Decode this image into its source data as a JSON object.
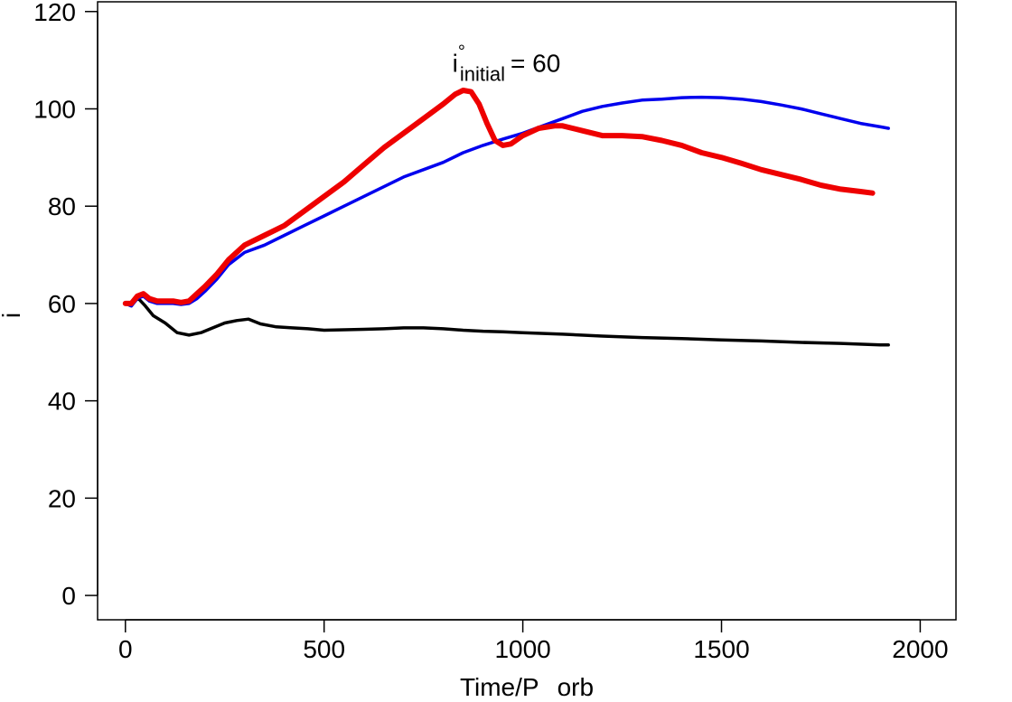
{
  "chart_data": {
    "type": "line",
    "title": "",
    "xlabel": {
      "main": "Time/P",
      "sub": "orb"
    },
    "ylabel": {
      "main": "i",
      "sup": "°"
    },
    "xlim": [
      -70,
      2090
    ],
    "ylim": [
      -5,
      122
    ],
    "xticks": [
      0,
      500,
      1000,
      1500,
      2000
    ],
    "yticks": [
      0,
      20,
      40,
      60,
      80,
      100,
      120
    ],
    "grid": false,
    "legend": "none",
    "annotation": {
      "symbol": "i",
      "sup": "°",
      "sub": "initial",
      "equals": "= 60",
      "x": 850,
      "y": 108
    },
    "series": [
      {
        "color": "#0000ee",
        "width": 3.5,
        "x": [
          0,
          15,
          30,
          45,
          60,
          80,
          100,
          120,
          140,
          160,
          180,
          200,
          230,
          260,
          300,
          350,
          400,
          450,
          500,
          550,
          600,
          650,
          700,
          750,
          800,
          850,
          900,
          950,
          1000,
          1050,
          1100,
          1150,
          1200,
          1250,
          1300,
          1350,
          1400,
          1450,
          1500,
          1550,
          1600,
          1650,
          1700,
          1750,
          1800,
          1850,
          1900,
          1920
        ],
        "y": [
          60,
          59.5,
          61,
          61.5,
          60.5,
          60,
          60,
          60,
          59.8,
          60,
          61,
          62.5,
          65,
          68,
          70.5,
          72,
          74,
          76,
          78,
          80,
          82,
          84,
          86,
          87.5,
          89,
          91,
          92.5,
          93.8,
          95,
          96.5,
          98,
          99.5,
          100.5,
          101.2,
          101.8,
          102,
          102.3,
          102.4,
          102.3,
          102,
          101.5,
          100.8,
          100,
          99,
          98,
          97,
          96.3,
          96
        ]
      },
      {
        "color": "#ee0000",
        "width": 6,
        "x": [
          0,
          15,
          30,
          45,
          60,
          80,
          100,
          120,
          140,
          160,
          180,
          200,
          230,
          260,
          300,
          350,
          400,
          450,
          500,
          550,
          600,
          650,
          700,
          750,
          800,
          830,
          850,
          870,
          890,
          910,
          930,
          950,
          970,
          1000,
          1040,
          1080,
          1100,
          1150,
          1200,
          1250,
          1300,
          1350,
          1400,
          1450,
          1500,
          1550,
          1600,
          1650,
          1700,
          1750,
          1800,
          1850,
          1880
        ],
        "y": [
          60,
          60,
          61.5,
          62,
          61,
          60.5,
          60.5,
          60.5,
          60.2,
          60.5,
          62,
          63.5,
          66,
          69,
          72,
          74,
          76,
          79,
          82,
          85,
          88.5,
          92,
          95,
          98,
          101,
          103,
          103.8,
          103.5,
          101,
          97,
          93.5,
          92.5,
          92.8,
          94.5,
          96,
          96.5,
          96.5,
          95.5,
          94.5,
          94.5,
          94.3,
          93.5,
          92.5,
          91,
          90,
          88.8,
          87.5,
          86.5,
          85.5,
          84.3,
          83.5,
          83,
          82.7
        ]
      },
      {
        "color": "#000000",
        "width": 3.5,
        "x": [
          0,
          15,
          25,
          35,
          50,
          70,
          100,
          130,
          160,
          190,
          220,
          250,
          280,
          310,
          340,
          380,
          420,
          460,
          500,
          550,
          600,
          650,
          700,
          750,
          800,
          850,
          900,
          950,
          1000,
          1100,
          1200,
          1300,
          1400,
          1500,
          1600,
          1700,
          1800,
          1900,
          1920
        ],
        "y": [
          60,
          59.5,
          61,
          60.8,
          59.5,
          57.5,
          56,
          54,
          53.5,
          54,
          55,
          56,
          56.5,
          56.8,
          55.8,
          55.2,
          55,
          54.8,
          54.5,
          54.6,
          54.7,
          54.8,
          55,
          55,
          54.8,
          54.5,
          54.3,
          54.2,
          54,
          53.7,
          53.3,
          53,
          52.8,
          52.5,
          52.3,
          52,
          51.8,
          51.5,
          51.5
        ]
      }
    ]
  }
}
